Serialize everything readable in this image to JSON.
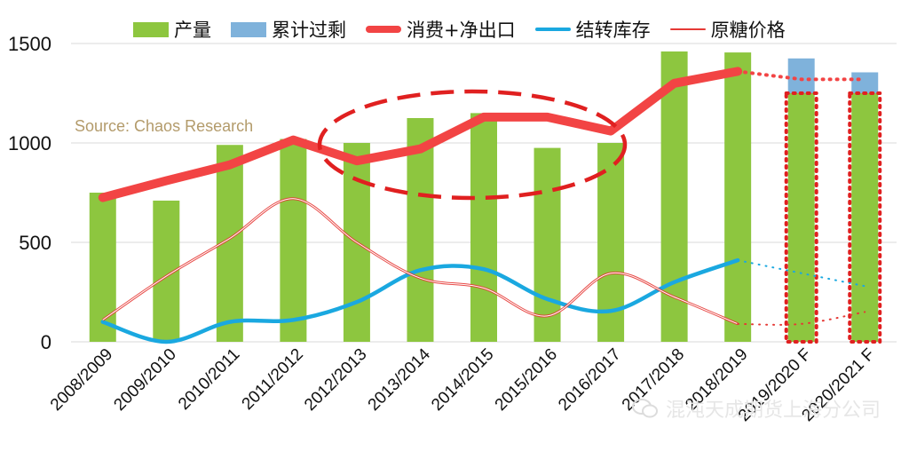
{
  "chart_data": {
    "type": "bar",
    "categories": [
      "2008/2009",
      "2009/2010",
      "2010/2011",
      "2011/2012",
      "2012/2013",
      "2013/2014",
      "2014/2015",
      "2015/2016",
      "2016/2017",
      "2017/2018",
      "2018/2019",
      "2019/2020 F",
      "2020/2021 F"
    ],
    "ylim": [
      0,
      1500
    ],
    "yticks": [
      0,
      500,
      1000,
      1500
    ],
    "grid": true,
    "legend_position": "top",
    "source": "Source:  Chaos Research",
    "series": [
      {
        "name": "产量",
        "kind": "bar",
        "color": "#8dc63f",
        "values": [
          750,
          710,
          990,
          1020,
          1000,
          1125,
          1150,
          975,
          1000,
          1460,
          1455,
          1250,
          1250
        ]
      },
      {
        "name": "累计过剩",
        "kind": "bar-stacked",
        "color": "#7fb2db",
        "values": [
          0,
          0,
          0,
          0,
          0,
          0,
          0,
          0,
          0,
          0,
          0,
          175,
          105
        ]
      },
      {
        "name": "消费+净出口",
        "kind": "line",
        "color": "#f24444",
        "values": [
          725,
          810,
          890,
          1015,
          910,
          970,
          1130,
          1130,
          1060,
          1300,
          1360,
          1320,
          1320
        ]
      },
      {
        "name": "结转库存",
        "kind": "line",
        "color": "#1aa8e0",
        "values": [
          100,
          0,
          100,
          110,
          200,
          360,
          365,
          215,
          155,
          300,
          410,
          345,
          280
        ]
      },
      {
        "name": "原糖价格",
        "kind": "line",
        "color": "#e53935",
        "values": [
          110,
          330,
          520,
          720,
          500,
          320,
          270,
          130,
          345,
          225,
          90,
          90,
          150
        ]
      }
    ],
    "forecast_from_index": 10
  },
  "legend": [
    {
      "label": "产量",
      "color": "#8dc63f",
      "shape": "bar"
    },
    {
      "label": "累计过剩",
      "color": "#7fb2db",
      "shape": "bar"
    },
    {
      "label": "消费+净出口",
      "color": "#f24444",
      "shape": "thick-line"
    },
    {
      "label": "结转库存",
      "color": "#1aa8e0",
      "shape": "line"
    },
    {
      "label": "原糖价格",
      "color": "#e53935",
      "shape": "thin-line"
    }
  ],
  "watermark": "混沌天成期货上海分公司",
  "watermark_icon": "wechat-icon"
}
